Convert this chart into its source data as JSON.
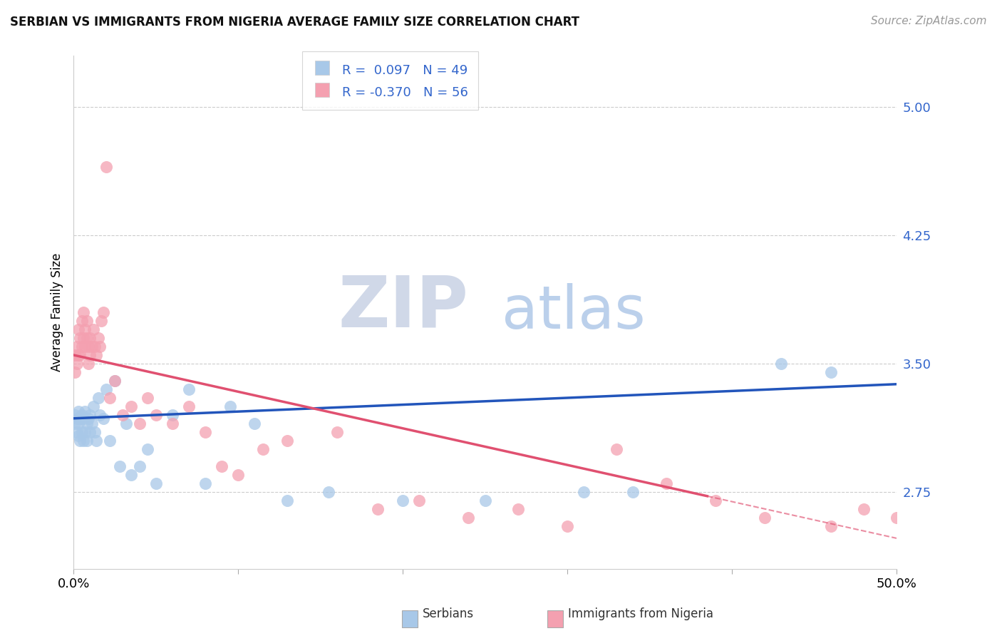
{
  "title": "SERBIAN VS IMMIGRANTS FROM NIGERIA AVERAGE FAMILY SIZE CORRELATION CHART",
  "source": "Source: ZipAtlas.com",
  "ylabel": "Average Family Size",
  "xlim": [
    0.0,
    0.5
  ],
  "ylim": [
    2.3,
    5.3
  ],
  "yticks": [
    2.75,
    3.5,
    4.25,
    5.0
  ],
  "ytick_labels": [
    "2.75",
    "3.50",
    "4.25",
    "5.00"
  ],
  "serbian_color": "#a8c8e8",
  "nigeria_color": "#f4a0b0",
  "trend_serbian_color": "#2255bb",
  "trend_nigeria_color": "#e05070",
  "background_color": "#ffffff",
  "watermark_zip": "ZIP",
  "watermark_atlas": "atlas",
  "watermark_zip_color": "#d0d8e8",
  "watermark_atlas_color": "#b0c8e8",
  "serbian_x": [
    0.001,
    0.001,
    0.002,
    0.002,
    0.003,
    0.003,
    0.003,
    0.004,
    0.004,
    0.005,
    0.005,
    0.006,
    0.006,
    0.007,
    0.007,
    0.008,
    0.008,
    0.009,
    0.01,
    0.01,
    0.011,
    0.012,
    0.013,
    0.014,
    0.015,
    0.016,
    0.018,
    0.02,
    0.022,
    0.025,
    0.028,
    0.032,
    0.035,
    0.04,
    0.045,
    0.05,
    0.06,
    0.07,
    0.08,
    0.095,
    0.11,
    0.13,
    0.155,
    0.2,
    0.25,
    0.31,
    0.34,
    0.43,
    0.46
  ],
  "serbian_y": [
    3.2,
    3.15,
    3.18,
    3.1,
    3.22,
    3.08,
    3.15,
    3.18,
    3.05,
    3.2,
    3.1,
    3.18,
    3.05,
    3.22,
    3.1,
    3.15,
    3.05,
    3.18,
    3.2,
    3.1,
    3.15,
    3.25,
    3.1,
    3.05,
    3.3,
    3.2,
    3.18,
    3.35,
    3.05,
    3.4,
    2.9,
    3.15,
    2.85,
    2.9,
    3.0,
    2.8,
    3.2,
    3.35,
    2.8,
    3.25,
    3.15,
    2.7,
    2.75,
    2.7,
    2.7,
    2.75,
    2.75,
    3.5,
    3.45
  ],
  "nigeria_x": [
    0.001,
    0.001,
    0.002,
    0.002,
    0.003,
    0.003,
    0.004,
    0.004,
    0.005,
    0.005,
    0.006,
    0.006,
    0.007,
    0.007,
    0.008,
    0.008,
    0.009,
    0.009,
    0.01,
    0.01,
    0.011,
    0.012,
    0.013,
    0.014,
    0.015,
    0.016,
    0.017,
    0.018,
    0.02,
    0.022,
    0.025,
    0.03,
    0.035,
    0.04,
    0.045,
    0.05,
    0.06,
    0.07,
    0.08,
    0.09,
    0.1,
    0.115,
    0.13,
    0.16,
    0.185,
    0.21,
    0.24,
    0.27,
    0.3,
    0.33,
    0.36,
    0.39,
    0.42,
    0.46,
    0.48,
    0.5
  ],
  "nigeria_y": [
    3.45,
    3.55,
    3.6,
    3.5,
    3.7,
    3.55,
    3.65,
    3.55,
    3.75,
    3.6,
    3.8,
    3.65,
    3.7,
    3.6,
    3.75,
    3.65,
    3.6,
    3.5,
    3.65,
    3.55,
    3.6,
    3.7,
    3.6,
    3.55,
    3.65,
    3.6,
    3.75,
    3.8,
    4.65,
    3.3,
    3.4,
    3.2,
    3.25,
    3.15,
    3.3,
    3.2,
    3.15,
    3.25,
    3.1,
    2.9,
    2.85,
    3.0,
    3.05,
    3.1,
    2.65,
    2.7,
    2.6,
    2.65,
    2.55,
    3.0,
    2.8,
    2.7,
    2.6,
    2.55,
    2.65,
    2.6
  ],
  "trend_serbian_x0": 0.0,
  "trend_serbian_x1": 0.5,
  "trend_serbian_y0": 3.18,
  "trend_serbian_y1": 3.38,
  "trend_nigeria_x0": 0.0,
  "trend_nigeria_x1": 0.5,
  "trend_nigeria_y0": 3.55,
  "trend_nigeria_y1": 2.48,
  "trend_nigeria_solid_end": 0.385
}
